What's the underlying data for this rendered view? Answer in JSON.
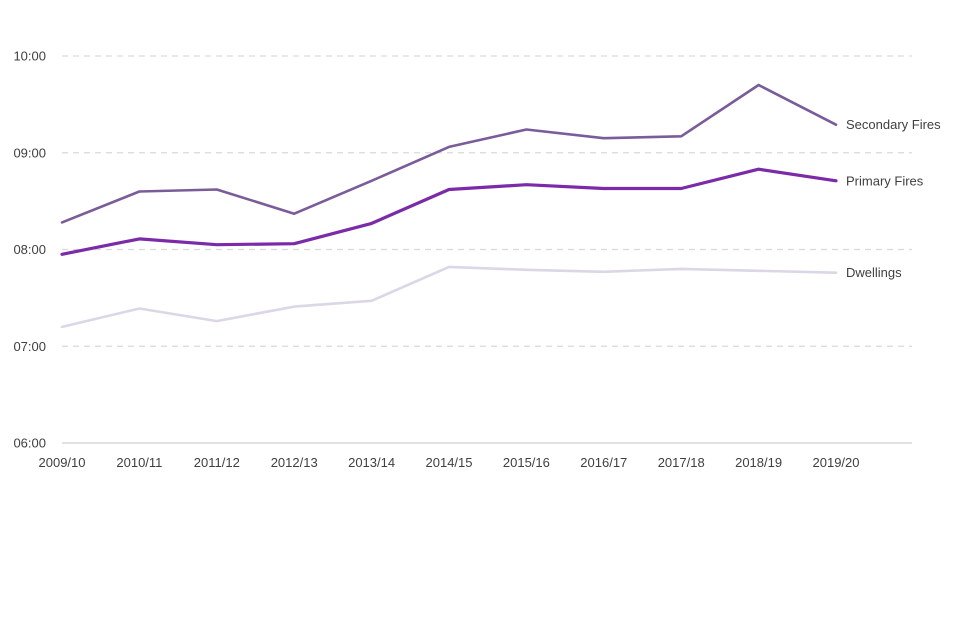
{
  "chart_data": {
    "type": "line",
    "categories": [
      "2009/10",
      "2010/11",
      "2011/12",
      "2012/13",
      "2013/14",
      "2014/15",
      "2015/16",
      "2016/17",
      "2017/18",
      "2018/19",
      "2019/20"
    ],
    "y_tick_labels": [
      "06:00",
      "07:00",
      "08:00",
      "09:00",
      "10:00"
    ],
    "y_unit": "hours of day",
    "ylim": [
      6,
      10
    ],
    "grid": {
      "horizontal": true,
      "style": "dashed"
    },
    "legend": "labels at end of lines (right)",
    "series": [
      {
        "name": "Secondary Fires",
        "color": "#7a5c9b",
        "values": [
          8.28,
          8.6,
          8.62,
          8.37,
          8.71,
          9.06,
          9.24,
          9.15,
          9.17,
          9.7,
          9.29
        ]
      },
      {
        "name": "Primary Fires",
        "color": "#7b2aa8",
        "values": [
          7.95,
          8.11,
          8.05,
          8.06,
          8.27,
          8.62,
          8.67,
          8.63,
          8.63,
          8.83,
          8.71
        ]
      },
      {
        "name": "Dwellings",
        "color": "#dcd6e6",
        "values": [
          7.2,
          7.39,
          7.26,
          7.41,
          7.47,
          7.82,
          7.79,
          7.77,
          7.8,
          7.78,
          7.76
        ]
      }
    ]
  }
}
